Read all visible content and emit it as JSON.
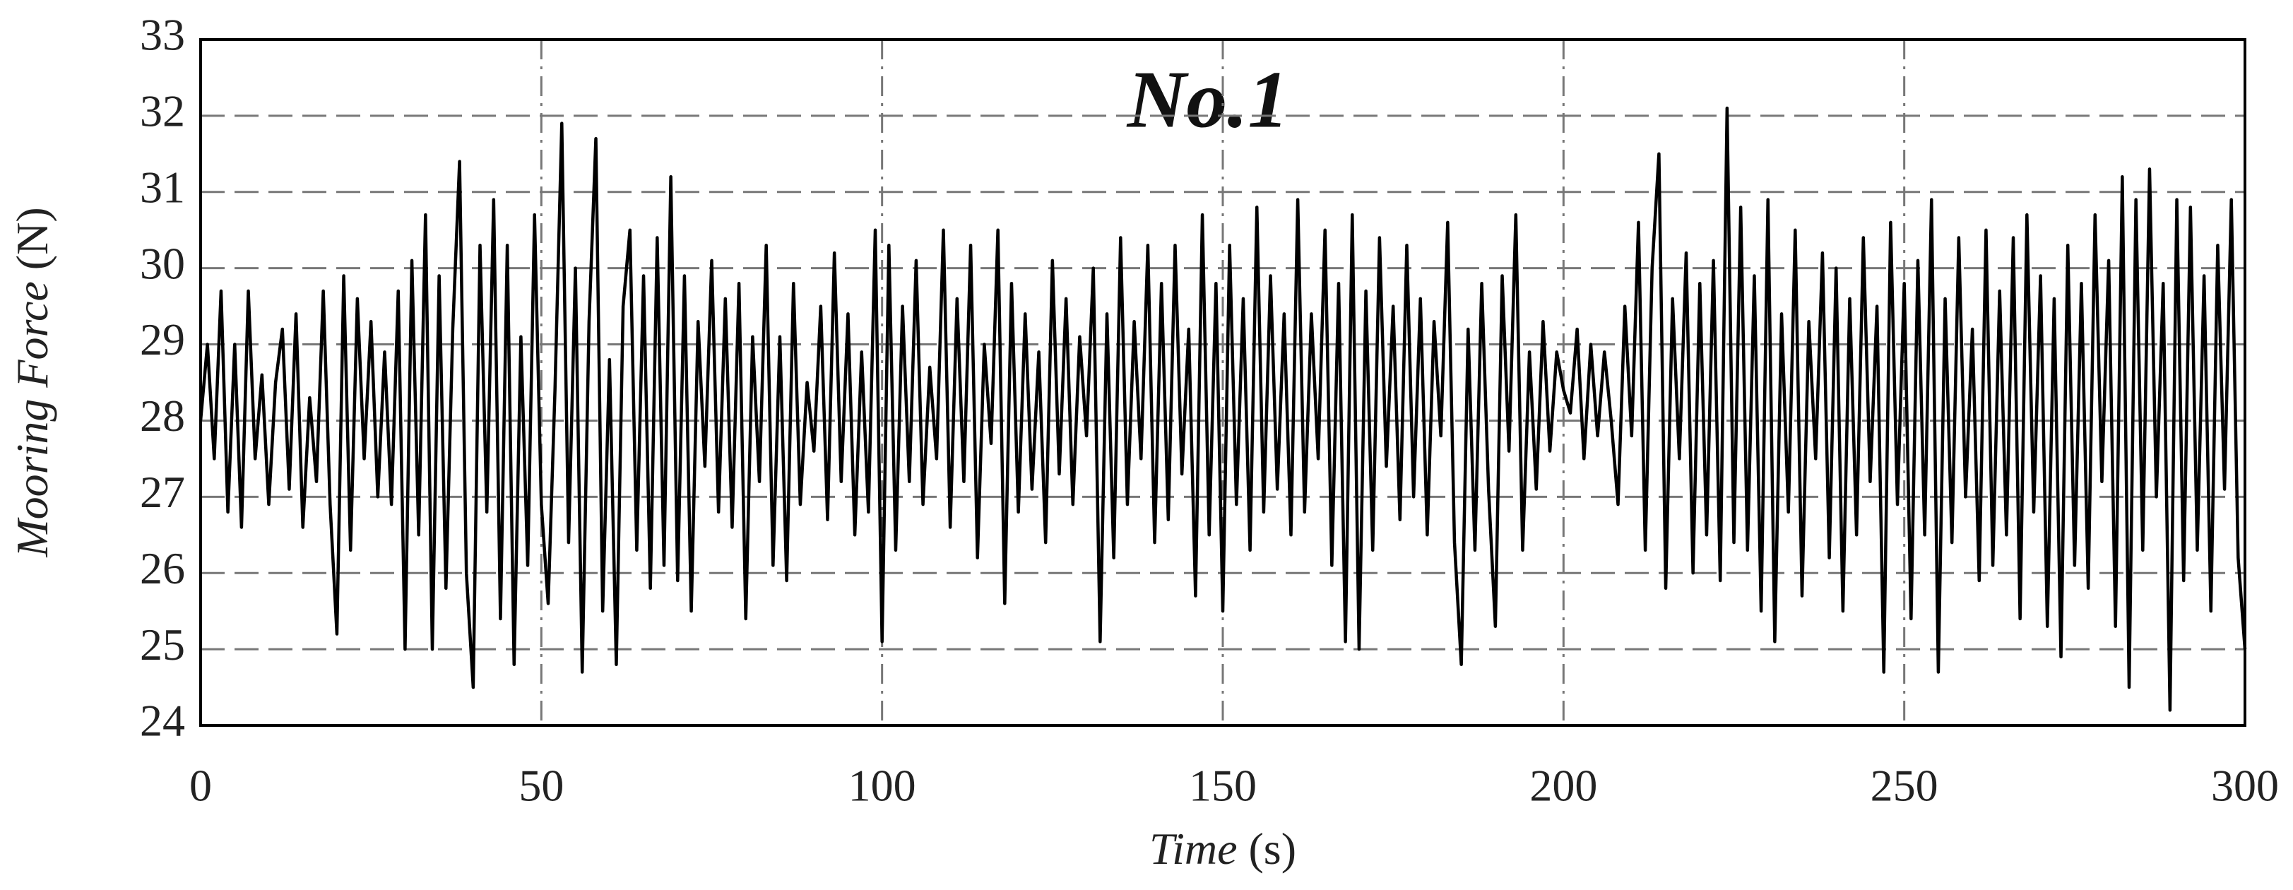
{
  "chart_data": {
    "type": "line",
    "title": "No.1",
    "x_label": {
      "text": "Time",
      "unit": "(s)"
    },
    "y_label": {
      "text": "Mooring Force",
      "unit": "(N)"
    },
    "color": "#000000",
    "grid": true,
    "xlim": [
      0,
      300
    ],
    "xticks": [
      0,
      50,
      100,
      150,
      200,
      250,
      300
    ],
    "ylim": [
      24,
      33
    ],
    "yticks": [
      24,
      25,
      26,
      27,
      28,
      29,
      30,
      31,
      32,
      33
    ],
    "x": [
      0,
      1,
      2,
      3,
      4,
      5,
      6,
      7,
      8,
      9,
      10,
      11,
      12,
      13,
      14,
      15,
      16,
      17,
      18,
      19,
      20,
      21,
      22,
      23,
      24,
      25,
      26,
      27,
      28,
      29,
      30,
      31,
      32,
      33,
      34,
      35,
      36,
      37,
      38,
      39,
      40,
      41,
      42,
      43,
      44,
      45,
      46,
      47,
      48,
      49,
      50,
      51,
      52,
      53,
      54,
      55,
      56,
      57,
      58,
      59,
      60,
      61,
      62,
      63,
      64,
      65,
      66,
      67,
      68,
      69,
      70,
      71,
      72,
      73,
      74,
      75,
      76,
      77,
      78,
      79,
      80,
      81,
      82,
      83,
      84,
      85,
      86,
      87,
      88,
      89,
      90,
      91,
      92,
      93,
      94,
      95,
      96,
      97,
      98,
      99,
      100,
      101,
      102,
      103,
      104,
      105,
      106,
      107,
      108,
      109,
      110,
      111,
      112,
      113,
      114,
      115,
      116,
      117,
      118,
      119,
      120,
      121,
      122,
      123,
      124,
      125,
      126,
      127,
      128,
      129,
      130,
      131,
      132,
      133,
      134,
      135,
      136,
      137,
      138,
      139,
      140,
      141,
      142,
      143,
      144,
      145,
      146,
      147,
      148,
      149,
      150,
      151,
      152,
      153,
      154,
      155,
      156,
      157,
      158,
      159,
      160,
      161,
      162,
      163,
      164,
      165,
      166,
      167,
      168,
      169,
      170,
      171,
      172,
      173,
      174,
      175,
      176,
      177,
      178,
      179,
      180,
      181,
      182,
      183,
      184,
      185,
      186,
      187,
      188,
      189,
      190,
      191,
      192,
      193,
      194,
      195,
      196,
      197,
      198,
      199,
      200,
      201,
      202,
      203,
      204,
      205,
      206,
      207,
      208,
      209,
      210,
      211,
      212,
      213,
      214,
      215,
      216,
      217,
      218,
      219,
      220,
      221,
      222,
      223,
      224,
      225,
      226,
      227,
      228,
      229,
      230,
      231,
      232,
      233,
      234,
      235,
      236,
      237,
      238,
      239,
      240,
      241,
      242,
      243,
      244,
      245,
      246,
      247,
      248,
      249,
      250,
      251,
      252,
      253,
      254,
      255,
      256,
      257,
      258,
      259,
      260,
      261,
      262,
      263,
      264,
      265,
      266,
      267,
      268,
      269,
      270,
      271,
      272,
      273,
      274,
      275,
      276,
      277,
      278,
      279,
      280,
      281,
      282,
      283,
      284,
      285,
      286,
      287,
      288,
      289,
      290,
      291,
      292,
      293,
      294,
      295,
      296,
      297,
      298,
      299,
      300
    ],
    "values": [
      28,
      29,
      27.5,
      29.7,
      26.8,
      29,
      26.6,
      29.7,
      27.5,
      28.6,
      26.9,
      28.5,
      29.2,
      27.1,
      29.4,
      26.6,
      28.3,
      27.2,
      29.7,
      26.9,
      25.2,
      29.9,
      26.3,
      29.6,
      27.5,
      29.3,
      27,
      28.9,
      26.9,
      29.7,
      25,
      30.1,
      26.5,
      30.7,
      25,
      29.9,
      25.8,
      29.2,
      31.4,
      26,
      24.5,
      30.3,
      26.8,
      30.9,
      25.4,
      30.3,
      24.8,
      29.1,
      26.1,
      30.7,
      26.9,
      25.6,
      28.4,
      31.9,
      26.4,
      30,
      24.7,
      29.3,
      31.7,
      25.5,
      28.8,
      24.8,
      29.5,
      30.5,
      26.3,
      29.9,
      25.8,
      30.4,
      26.1,
      31.2,
      25.9,
      29.9,
      25.5,
      29.3,
      27.4,
      30.1,
      26.8,
      29.6,
      26.6,
      29.8,
      25.4,
      29.1,
      27.2,
      30.3,
      26.1,
      29.1,
      25.9,
      29.8,
      26.9,
      28.5,
      27.6,
      29.5,
      26.7,
      30.2,
      27.2,
      29.4,
      26.5,
      28.9,
      26.8,
      30.5,
      25.1,
      30.3,
      26.3,
      29.5,
      27.2,
      30.1,
      26.9,
      28.7,
      27.5,
      30.5,
      26.6,
      29.6,
      27.2,
      30.3,
      26.2,
      29,
      27.7,
      30.5,
      25.6,
      29.8,
      26.8,
      29.4,
      27.1,
      28.9,
      26.4,
      30.1,
      27.3,
      29.6,
      26.9,
      29.1,
      27.8,
      30,
      25.1,
      29.4,
      26.2,
      30.4,
      26.9,
      29.3,
      27.5,
      30.3,
      26.4,
      29.8,
      26.7,
      30.3,
      27.3,
      29.2,
      25.7,
      30.7,
      26.5,
      29.8,
      25.5,
      30.3,
      26.9,
      29.6,
      26.3,
      30.8,
      26.8,
      29.9,
      27.1,
      29.4,
      26.5,
      30.9,
      26.8,
      29.4,
      27.5,
      30.5,
      26.1,
      29.8,
      25.1,
      30.7,
      25,
      29.7,
      26.3,
      30.4,
      27.4,
      29.5,
      26.7,
      30.3,
      27,
      29.6,
      26.5,
      29.3,
      27.8,
      30.6,
      26.4,
      24.8,
      29.2,
      26.3,
      29.8,
      27.1,
      25.3,
      29.9,
      27.6,
      30.7,
      26.3,
      28.9,
      27.1,
      29.3,
      27.6,
      28.9,
      28.4,
      28.1,
      29.2,
      27.5,
      29,
      27.8,
      28.9,
      28,
      26.9,
      29.5,
      27.8,
      30.6,
      26.3,
      30,
      31.5,
      25.8,
      29.6,
      27.5,
      30.2,
      26,
      29.8,
      26.5,
      30.1,
      25.9,
      32.1,
      26.4,
      30.8,
      26.3,
      29.9,
      25.5,
      30.9,
      25.1,
      29.4,
      26.8,
      30.5,
      25.7,
      29.3,
      27.5,
      30.2,
      26.2,
      30,
      25.5,
      29.6,
      26.5,
      30.4,
      27.2,
      29.5,
      24.7,
      30.6,
      26.9,
      29.8,
      25.4,
      30.1,
      26.5,
      30.9,
      24.7,
      29.6,
      26.4,
      30.4,
      27,
      29.2,
      25.9,
      30.5,
      26.1,
      29.7,
      26.5,
      30.4,
      25.4,
      30.7,
      26.8,
      29.9,
      25.3,
      29.6,
      24.9,
      30.3,
      26.1,
      29.8,
      25.8,
      30.7,
      27.2,
      30.1,
      25.3,
      31.2,
      24.5,
      30.9,
      26.3,
      31.3,
      27,
      29.8,
      24.2,
      30.9,
      25.9,
      30.8,
      26.3,
      29.9,
      25.5,
      30.3,
      27.1,
      30.9,
      26.2,
      25.0
    ]
  }
}
